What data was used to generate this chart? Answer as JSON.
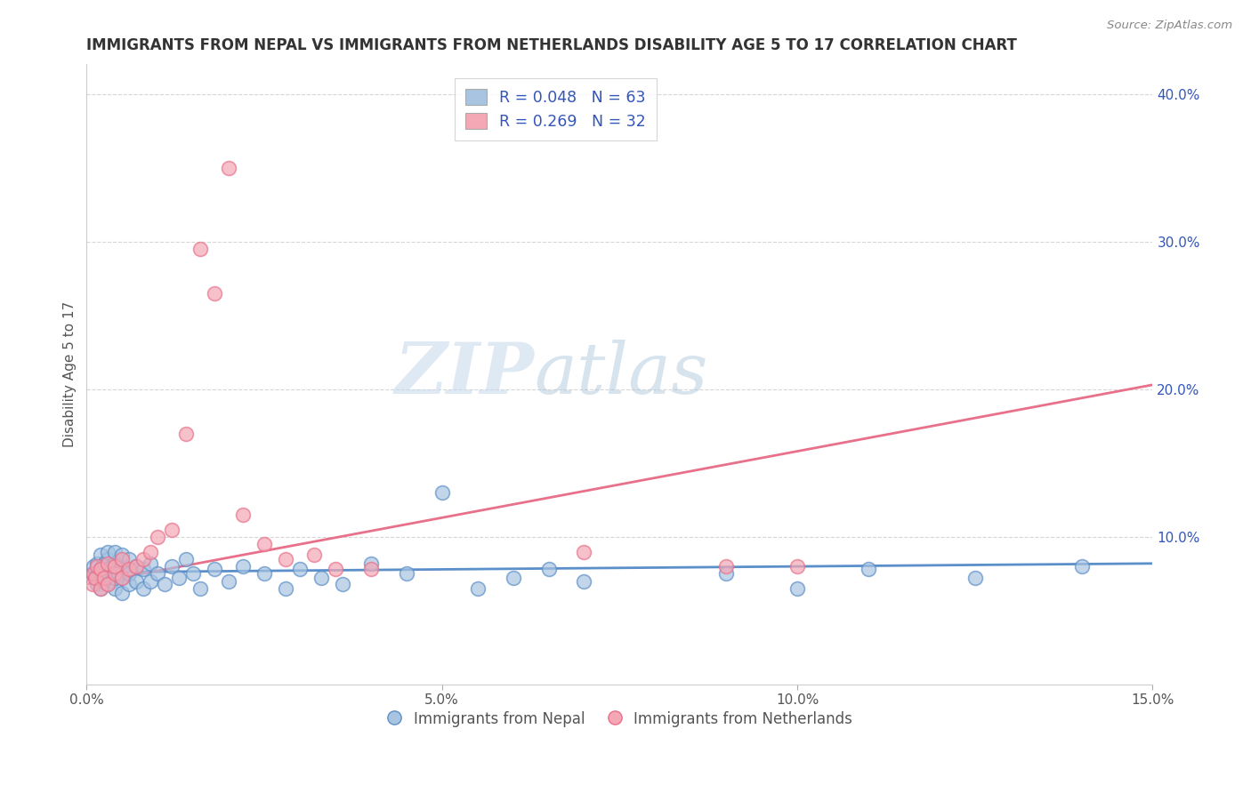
{
  "title": "IMMIGRANTS FROM NEPAL VS IMMIGRANTS FROM NETHERLANDS DISABILITY AGE 5 TO 17 CORRELATION CHART",
  "source": "Source: ZipAtlas.com",
  "ylabel": "Disability Age 5 to 17",
  "xlim": [
    0.0,
    0.15
  ],
  "ylim": [
    0.0,
    0.42
  ],
  "xtick_vals": [
    0.0,
    0.05,
    0.1,
    0.15
  ],
  "xticklabels": [
    "0.0%",
    "5.0%",
    "10.0%",
    "15.0%"
  ],
  "ytick_vals": [
    0.1,
    0.2,
    0.3,
    0.4
  ],
  "yticklabels": [
    "10.0%",
    "20.0%",
    "30.0%",
    "40.0%"
  ],
  "nepal_color": "#a8c4e0",
  "netherlands_color": "#f4a7b5",
  "nepal_line_color": "#5b8fc9",
  "netherlands_line_color": "#e8708a",
  "legend_text_color": "#3355bb",
  "legend_label1": "R = 0.048   N = 63",
  "legend_label2": "R = 0.269   N = 32",
  "legend_label_nepal": "Immigrants from Nepal",
  "legend_label_netherlands": "Immigrants from Netherlands",
  "watermark_ZIP": "ZIP",
  "watermark_atlas": "atlas",
  "nepal_x": [
    0.0008,
    0.001,
    0.0012,
    0.0015,
    0.0015,
    0.0018,
    0.002,
    0.002,
    0.002,
    0.0022,
    0.0025,
    0.0025,
    0.003,
    0.003,
    0.003,
    0.003,
    0.0035,
    0.0035,
    0.004,
    0.004,
    0.004,
    0.004,
    0.0045,
    0.005,
    0.005,
    0.005,
    0.005,
    0.006,
    0.006,
    0.006,
    0.007,
    0.007,
    0.008,
    0.008,
    0.009,
    0.009,
    0.01,
    0.011,
    0.012,
    0.013,
    0.014,
    0.015,
    0.016,
    0.018,
    0.02,
    0.022,
    0.025,
    0.028,
    0.03,
    0.033,
    0.036,
    0.04,
    0.045,
    0.05,
    0.055,
    0.06,
    0.065,
    0.07,
    0.09,
    0.1,
    0.11,
    0.125,
    0.14
  ],
  "nepal_y": [
    0.075,
    0.08,
    0.072,
    0.068,
    0.082,
    0.076,
    0.065,
    0.078,
    0.088,
    0.072,
    0.07,
    0.082,
    0.068,
    0.075,
    0.085,
    0.09,
    0.07,
    0.08,
    0.065,
    0.072,
    0.082,
    0.09,
    0.075,
    0.062,
    0.072,
    0.08,
    0.088,
    0.068,
    0.075,
    0.085,
    0.07,
    0.08,
    0.065,
    0.078,
    0.07,
    0.082,
    0.075,
    0.068,
    0.08,
    0.072,
    0.085,
    0.075,
    0.065,
    0.078,
    0.07,
    0.08,
    0.075,
    0.065,
    0.078,
    0.072,
    0.068,
    0.082,
    0.075,
    0.13,
    0.065,
    0.072,
    0.078,
    0.07,
    0.075,
    0.065,
    0.078,
    0.072,
    0.08
  ],
  "netherlands_x": [
    0.0008,
    0.001,
    0.0012,
    0.0015,
    0.002,
    0.002,
    0.0025,
    0.003,
    0.003,
    0.004,
    0.004,
    0.005,
    0.005,
    0.006,
    0.007,
    0.008,
    0.009,
    0.01,
    0.012,
    0.014,
    0.016,
    0.018,
    0.02,
    0.022,
    0.025,
    0.028,
    0.032,
    0.035,
    0.04,
    0.07,
    0.09,
    0.1
  ],
  "netherlands_y": [
    0.068,
    0.075,
    0.072,
    0.08,
    0.065,
    0.078,
    0.072,
    0.068,
    0.082,
    0.075,
    0.08,
    0.072,
    0.085,
    0.078,
    0.08,
    0.085,
    0.09,
    0.1,
    0.105,
    0.17,
    0.295,
    0.265,
    0.35,
    0.115,
    0.095,
    0.085,
    0.088,
    0.078,
    0.078,
    0.09,
    0.08,
    0.08
  ],
  "nepal_trend_x": [
    0.0,
    0.15
  ],
  "nepal_trend_y": [
    0.076,
    0.082
  ],
  "neth_trend_x": [
    0.0,
    0.15
  ],
  "neth_trend_y": [
    0.068,
    0.203
  ]
}
